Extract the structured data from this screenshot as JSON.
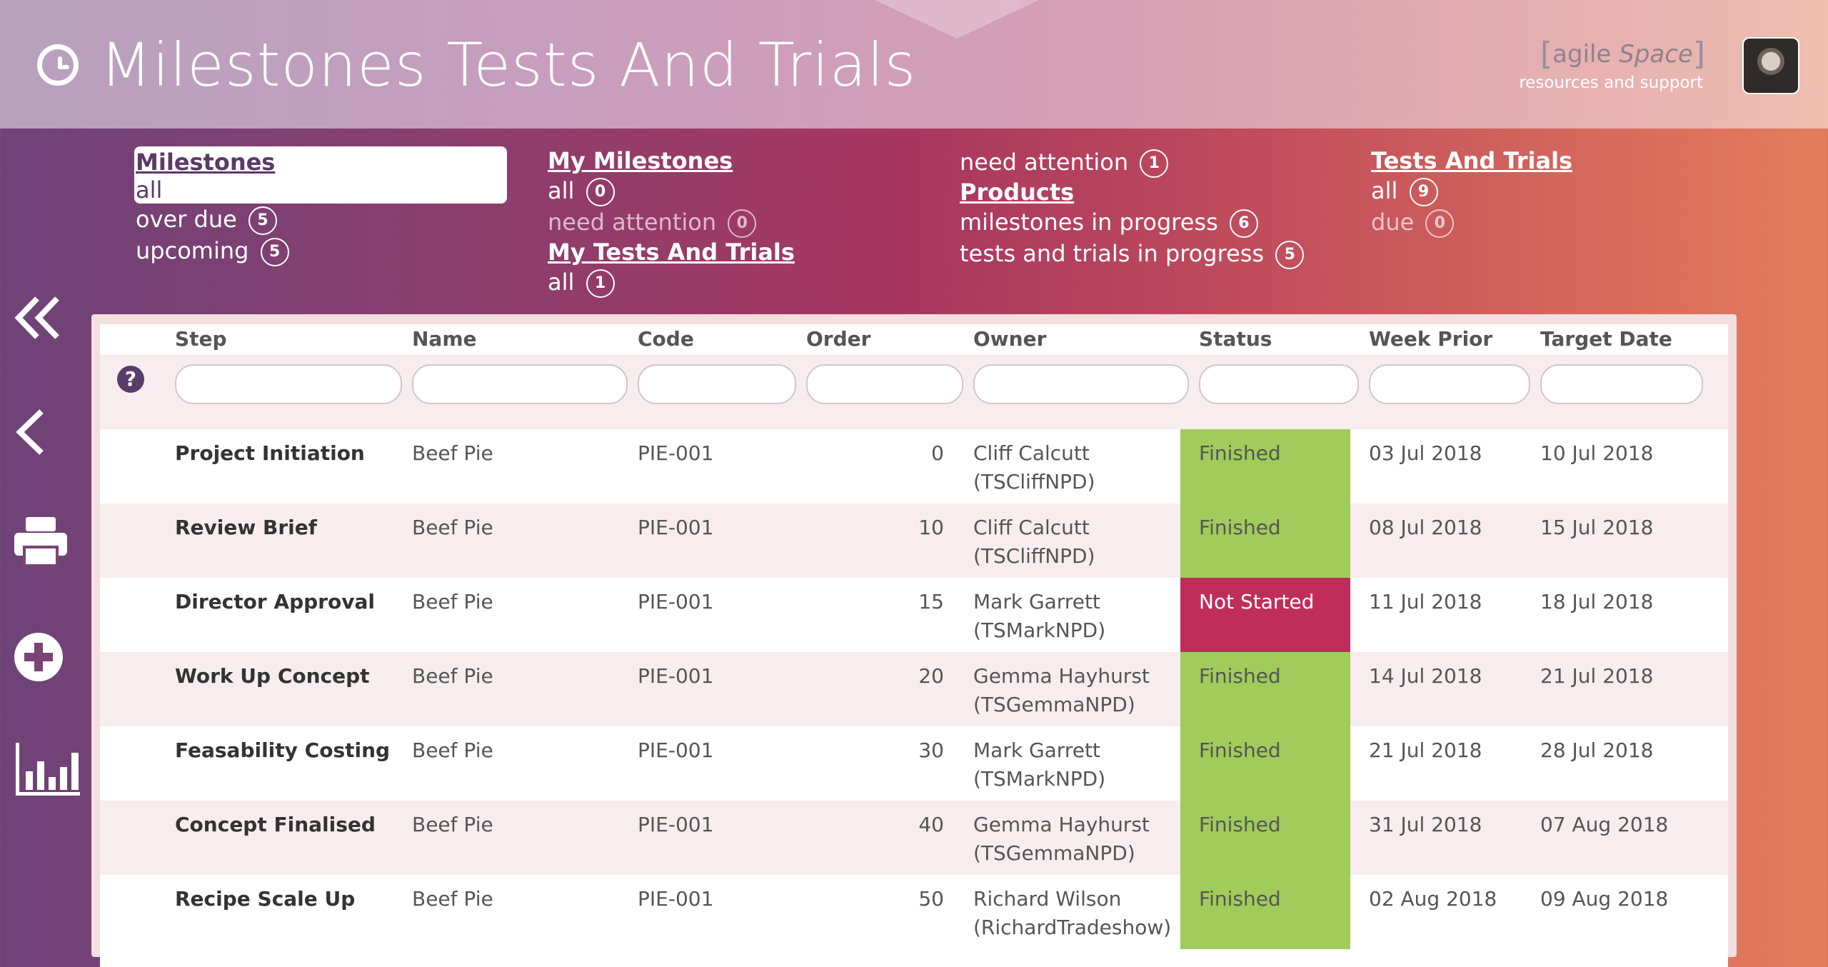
{
  "header": {
    "title": "Milestones Tests And Trials",
    "brand_open": "[",
    "brand_agile": "agile",
    "brand_space": "Space",
    "brand_close": "]",
    "brand_tagline": "resources and support"
  },
  "nav": {
    "milestones": {
      "heading": "Milestones",
      "items": [
        {
          "label": "all",
          "count": null
        },
        {
          "label": "over due",
          "count": "5"
        },
        {
          "label": "upcoming",
          "count": "5"
        }
      ]
    },
    "my_milestones": {
      "heading": "My Milestones",
      "items": [
        {
          "label": "all",
          "count": "0"
        },
        {
          "label": "need attention",
          "count": "0"
        }
      ]
    },
    "my_tests": {
      "heading": "My Tests And Trials",
      "items": [
        {
          "label": "all",
          "count": "1"
        }
      ]
    },
    "col3_top": {
      "label": "need attention",
      "count": "1"
    },
    "products": {
      "heading": "Products",
      "items": [
        {
          "label": "milestones in progress",
          "count": "6"
        },
        {
          "label": "tests and trials in progress",
          "count": "5"
        }
      ]
    },
    "tests_trials": {
      "heading": "Tests And Trials",
      "items": [
        {
          "label": "all",
          "count": "9"
        },
        {
          "label": "due",
          "count": "0"
        }
      ]
    }
  },
  "sidebar": {
    "icons": [
      "double-chevron-left-icon",
      "chevron-left-icon",
      "printer-icon",
      "add-circle-icon",
      "bar-chart-icon"
    ]
  },
  "table": {
    "headers": [
      "Step",
      "Name",
      "Code",
      "Order",
      "Owner",
      "Status",
      "Week Prior",
      "Target Date"
    ],
    "rows": [
      {
        "step": "Project Initiation",
        "name": "Beef Pie",
        "code": "PIE-001",
        "order": "0",
        "owner1": "Cliff Calcutt",
        "owner2": "(TSCliffNPD)",
        "status": "Finished",
        "week_prior": "03 Jul 2018",
        "target": "10 Jul 2018"
      },
      {
        "step": "Review Brief",
        "name": "Beef Pie",
        "code": "PIE-001",
        "order": "10",
        "owner1": "Cliff Calcutt",
        "owner2": "(TSCliffNPD)",
        "status": "Finished",
        "week_prior": "08 Jul 2018",
        "target": "15 Jul 2018"
      },
      {
        "step": "Director Approval",
        "name": "Beef Pie",
        "code": "PIE-001",
        "order": "15",
        "owner1": "Mark Garrett",
        "owner2": "(TSMarkNPD)",
        "status": "Not Started",
        "week_prior": "11 Jul 2018",
        "target": "18 Jul 2018"
      },
      {
        "step": "Work Up Concept",
        "name": "Beef Pie",
        "code": "PIE-001",
        "order": "20",
        "owner1": "Gemma Hayhurst",
        "owner2": "(TSGemmaNPD)",
        "status": "Finished",
        "week_prior": "14 Jul 2018",
        "target": "21 Jul 2018"
      },
      {
        "step": "Feasability Costing",
        "name": "Beef Pie",
        "code": "PIE-001",
        "order": "30",
        "owner1": "Mark Garrett",
        "owner2": "(TSMarkNPD)",
        "status": "Finished",
        "week_prior": "21 Jul 2018",
        "target": "28 Jul 2018"
      },
      {
        "step": "Concept Finalised",
        "name": "Beef Pie",
        "code": "PIE-001",
        "order": "40",
        "owner1": "Gemma Hayhurst",
        "owner2": "(TSGemmaNPD)",
        "status": "Finished",
        "week_prior": "31 Jul 2018",
        "target": "07 Aug 2018"
      },
      {
        "step": "Recipe Scale Up",
        "name": "Beef Pie",
        "code": "PIE-001",
        "order": "50",
        "owner1": "Richard Wilson",
        "owner2": "(RichardTradeshow)",
        "status": "Finished",
        "week_prior": "02 Aug 2018",
        "target": "09 Aug 2018"
      }
    ]
  },
  "colors": {
    "finished": "#a1cb5a",
    "not_started": "#c12d5a",
    "accent": "#5a3c6a"
  }
}
